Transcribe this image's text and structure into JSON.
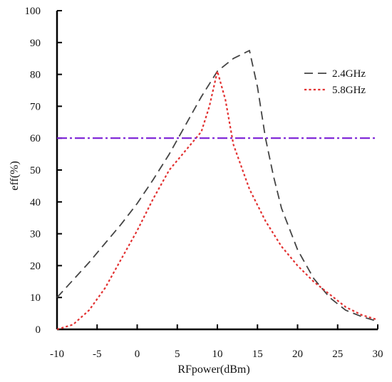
{
  "chart_data": {
    "type": "line",
    "title": "",
    "xlabel": "RFpower(dBm)",
    "ylabel": "eff(%)",
    "xlim": [
      -10,
      30
    ],
    "ylim": [
      0,
      100
    ],
    "xticks": [
      -10,
      -5,
      0,
      5,
      10,
      15,
      20,
      25,
      30
    ],
    "yticks": [
      0,
      10,
      20,
      30,
      40,
      50,
      60,
      70,
      80,
      90,
      100
    ],
    "grid": false,
    "legend_position": "top-right",
    "series": [
      {
        "name": "2.4GHz",
        "color": "#444444",
        "style": "dashed",
        "x": [
          -10,
          -8,
          -6,
          -4,
          -2,
          0,
          2,
          4,
          6,
          8,
          10,
          12,
          14,
          15,
          16,
          17,
          18,
          20,
          22,
          24,
          26,
          28,
          30
        ],
        "y": [
          10,
          15.5,
          21,
          27,
          33,
          39.5,
          47,
          55,
          64,
          73,
          81,
          85,
          87.5,
          76,
          60,
          48,
          38,
          25,
          16,
          10,
          6,
          4,
          2.5
        ]
      },
      {
        "name": "5.8GHz",
        "color": "#e23030",
        "style": "dotted",
        "x": [
          -10,
          -8,
          -6,
          -4,
          -2,
          0,
          2,
          4,
          6,
          8,
          9,
          10,
          11,
          12,
          14,
          16,
          18,
          20,
          22,
          24,
          26,
          28,
          30
        ],
        "y": [
          0,
          1.5,
          6,
          13,
          22,
          31,
          41,
          50,
          56,
          62,
          70,
          81,
          72,
          58,
          44,
          34,
          26,
          20,
          15,
          11,
          7,
          4.5,
          3
        ]
      },
      {
        "color": "#7b1fd6",
        "style": "dash-dot",
        "x": [
          -10,
          30
        ],
        "y": [
          60,
          60
        ]
      }
    ]
  }
}
